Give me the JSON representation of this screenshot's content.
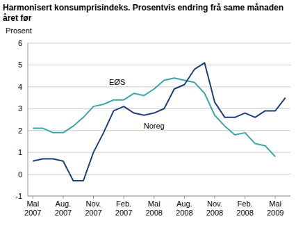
{
  "chart_data": {
    "type": "line",
    "title": "Harmonisert konsumprisindeks. Prosentvis endring frå same månaden året før",
    "y_label": "Prosent",
    "categories": [
      "Mai 2007",
      null,
      null,
      "Aug. 2007",
      null,
      null,
      "Nov. 2007",
      null,
      null,
      "Feb. 2007",
      null,
      null,
      "Mai 2008",
      null,
      null,
      "Aug. 2008",
      null,
      null,
      "Nov. 2008",
      null,
      null,
      "Feb. 2008",
      null,
      null,
      "Mai 2009",
      null
    ],
    "series": [
      {
        "name": "EØS",
        "color": "#3aa8a3",
        "values": [
          2.1,
          2.1,
          1.9,
          1.9,
          2.2,
          2.6,
          3.1,
          3.2,
          3.4,
          3.4,
          3.7,
          3.6,
          3.9,
          4.3,
          4.4,
          4.3,
          4.2,
          3.7,
          2.7,
          2.2,
          1.8,
          1.9,
          1.4,
          1.3,
          0.8,
          null
        ]
      },
      {
        "name": "Noreg",
        "color": "#1b3f7f",
        "values": [
          0.6,
          0.7,
          0.7,
          0.6,
          -0.3,
          -0.3,
          1.0,
          1.9,
          2.9,
          3.1,
          2.8,
          2.7,
          2.8,
          3.0,
          3.9,
          4.1,
          4.8,
          5.1,
          3.3,
          2.6,
          2.6,
          2.8,
          2.6,
          2.9,
          2.9,
          3.5
        ]
      }
    ],
    "ylim": [
      -1,
      6
    ],
    "yticks": [
      -1,
      0,
      1,
      2,
      3,
      4,
      5,
      6
    ],
    "grid": true
  }
}
